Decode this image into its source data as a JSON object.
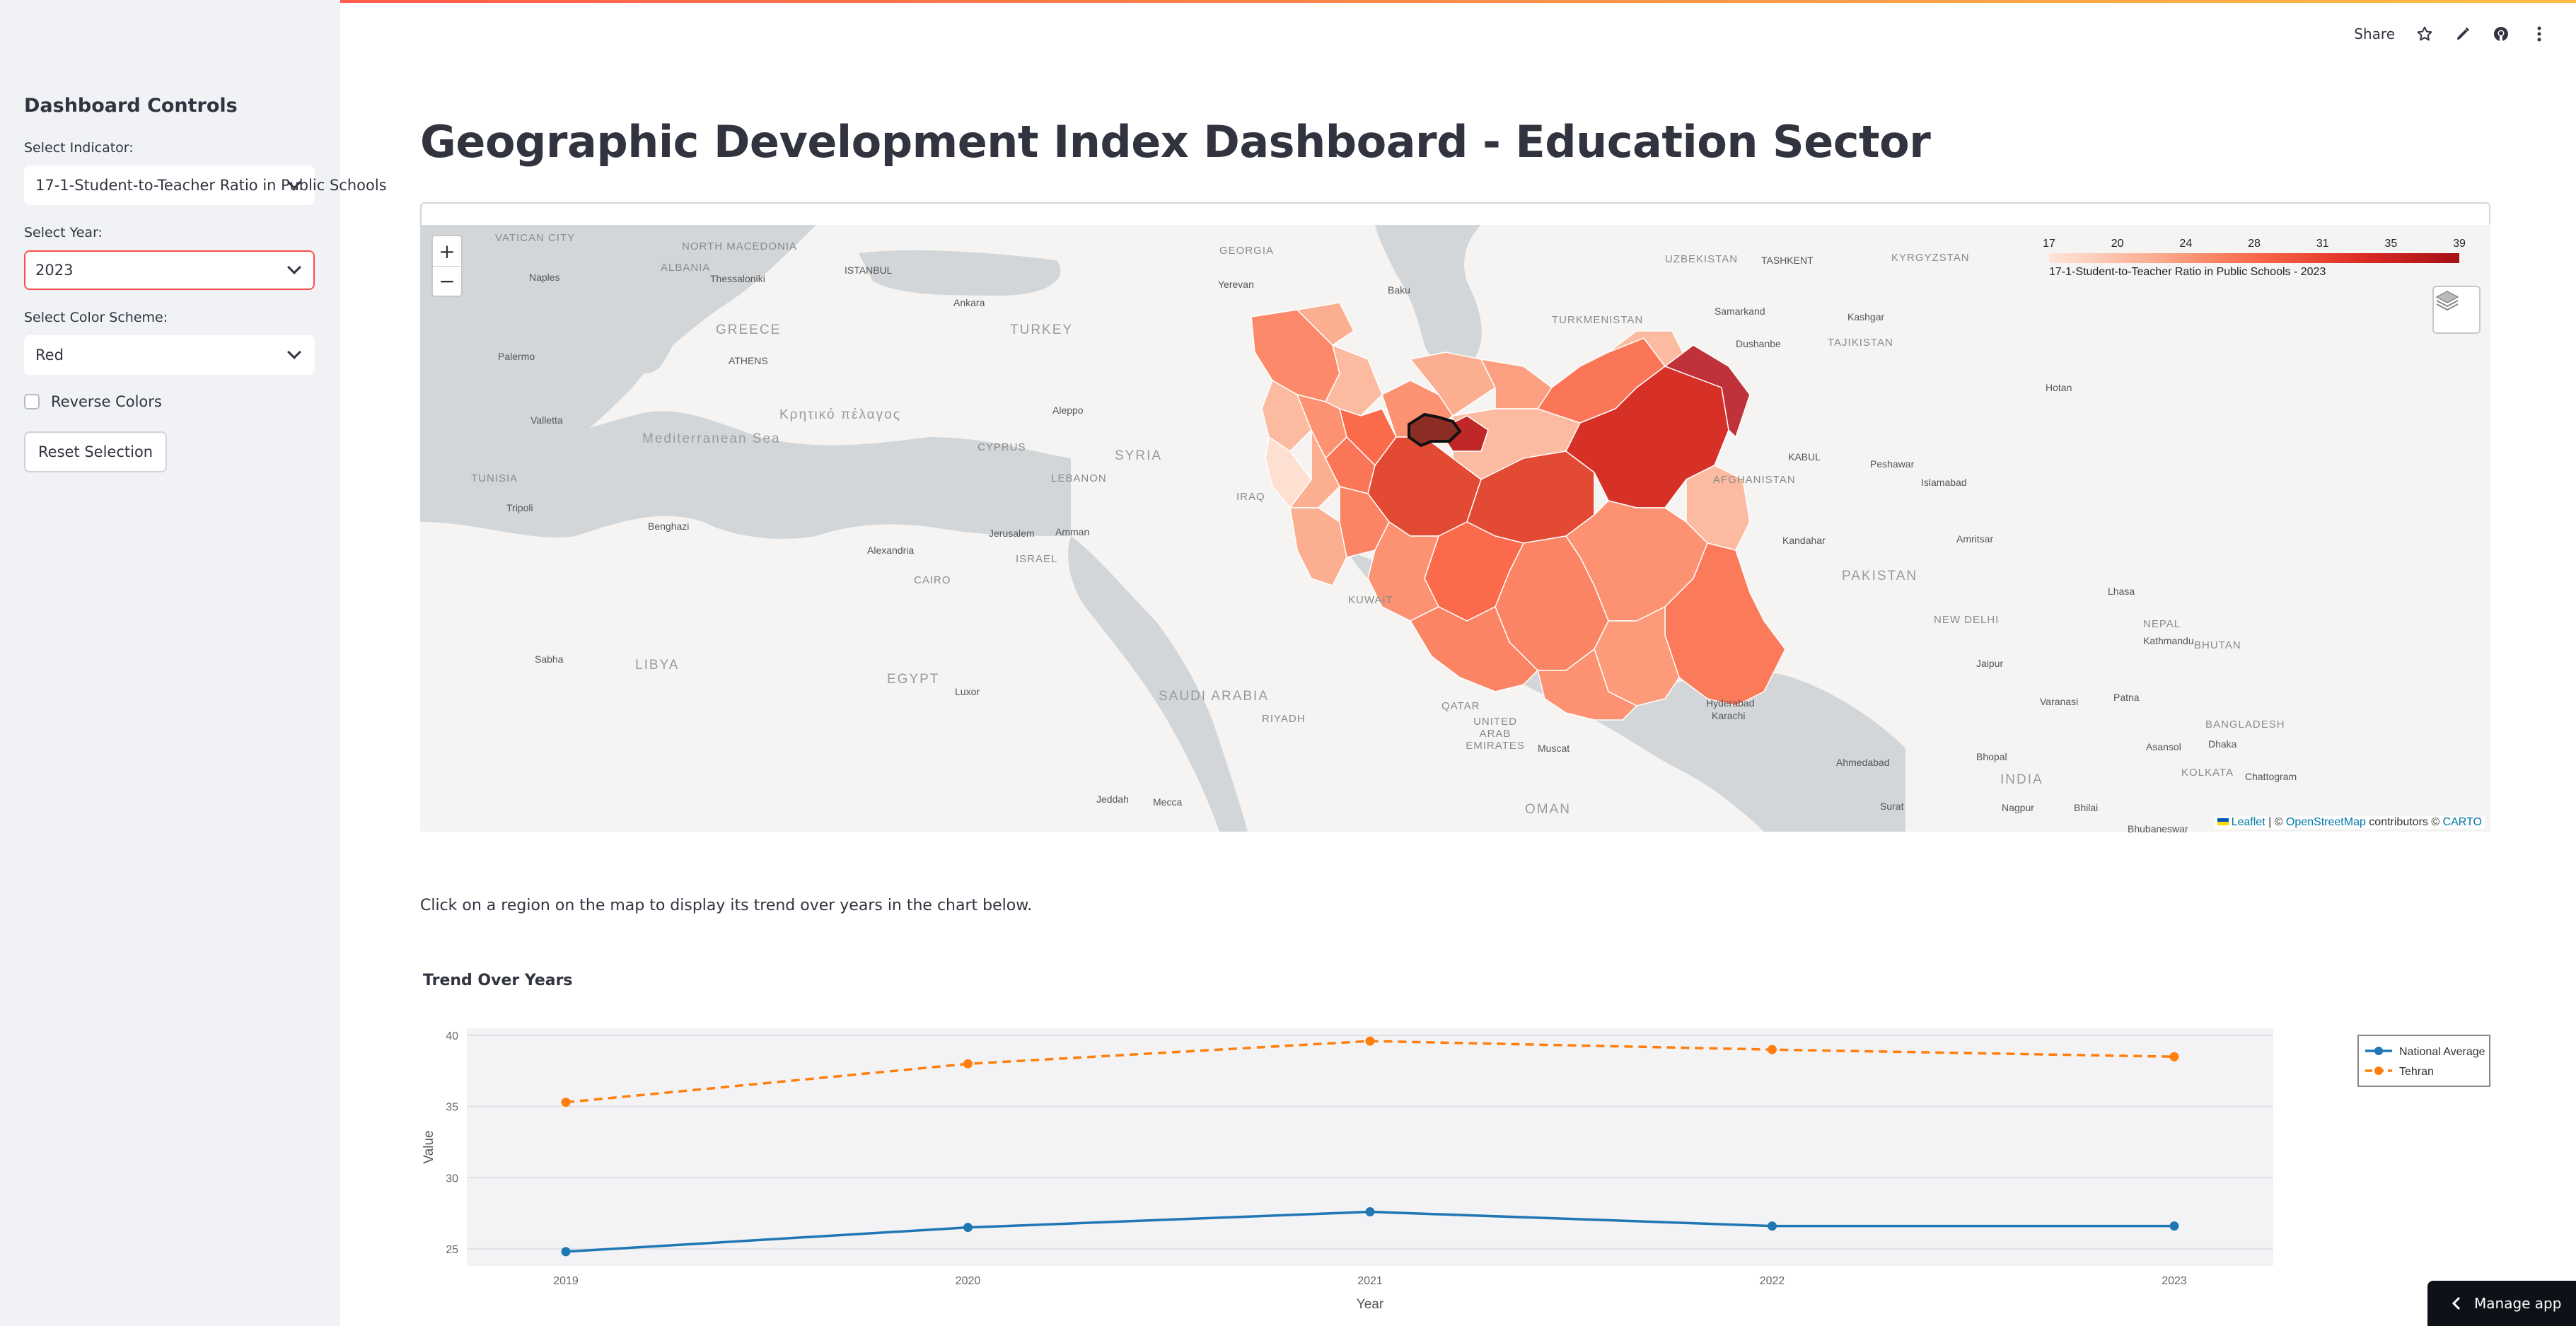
{
  "header": {
    "share_label": "Share",
    "icons": [
      "star-icon",
      "edit-icon",
      "github-icon",
      "more-icon"
    ]
  },
  "sidebar": {
    "title": "Dashboard Controls",
    "indicator_label": "Select Indicator:",
    "indicator_value": "17-1-Student-to-Teacher Ratio in Public Schools",
    "year_label": "Select Year:",
    "year_value": "2023",
    "color_label": "Select Color Scheme:",
    "color_value": "Red",
    "reverse_label": "Reverse Colors",
    "reverse_checked": false,
    "reset_label": "Reset Selection"
  },
  "main": {
    "title": "Geographic Development Index Dashboard - Education Sector",
    "instruction": "Click on a region on the map to display its trend over years in the chart below.",
    "chart_title": "Trend Over Years"
  },
  "map": {
    "zoom_in": "+",
    "zoom_out": "−",
    "legend_ticks": [
      "17",
      "20",
      "24",
      "28",
      "31",
      "35",
      "39"
    ],
    "legend_title": "17-1-Student-to-Teacher Ratio in Public Schools - 2023",
    "attribution_leaflet": "Leaflet",
    "attribution_sep1": " | © ",
    "attribution_osm": "OpenStreetMap",
    "attribution_mid": " contributors © ",
    "attribution_carto": "CARTO",
    "labels": {
      "vatican": "VATICAN CITY",
      "north_macedonia": "NORTH MACEDONIA",
      "georgia": "GEORGIA",
      "uzbekistan": "UZBEKISTAN",
      "tashkent": "TASHKENT",
      "kyrgyzstan": "KYRGYZSTAN",
      "albania": "ALBANIA",
      "thessaloniki": "Thessaloniki",
      "istanbul": "ISTANBUL",
      "yerevan": "Yerevan",
      "baku": "Baku",
      "naples": "Naples",
      "ankara": "Ankara",
      "greece": "GREECE",
      "turkey": "TURKEY",
      "turkmenistan": "TURKMENISTAN",
      "samarkand": "Samarkand",
      "kashgar": "Kashgar",
      "dushanbe": "Dushanbe",
      "tajikistan": "TAJIKISTAN",
      "athens": "ATHENS",
      "palermo": "Palermo",
      "hotan": "Hotan",
      "valletta": "Valletta",
      "mediterranean": "Mediterranean Sea",
      "kritiko": "Κρητικό πέλαγος",
      "aleppo": "Aleppo",
      "cyprus": "CYPRUS",
      "syria": "SYRIA",
      "lebanon": "LEBANON",
      "tunisia": "TUNISIA",
      "iraq": "IRAQ",
      "kabul": "KABUL",
      "peshawar": "Peshawar",
      "islamabad": "Islamabad",
      "afghanistan": "AFGHANISTAN",
      "tripoli": "Tripoli",
      "benghazi": "Benghazi",
      "alexandria": "Alexandria",
      "jerusalem": "Jerusalem",
      "amman": "Amman",
      "israel": "ISRAEL",
      "kandahar": "Kandahar",
      "amritsar": "Amritsar",
      "cairo": "CAIRO",
      "kuwait": "KUWAIT",
      "pakistan": "PAKISTAN",
      "lhasa": "Lhasa",
      "new_delhi": "NEW DELHI",
      "nepal": "NEPAL",
      "kathmandu": "Kathmandu",
      "sabha": "Sabha",
      "libya": "LIBYA",
      "egypt": "EGYPT",
      "jaipur": "Jaipur",
      "bhutan": "BHUTAN",
      "luxor": "Luxor",
      "saudi": "SAUDI ARABIA",
      "riyadh": "RIYADH",
      "qatar": "QATAR",
      "uae": "UNITED ARAB EMIRATES",
      "hyderabad": "Hyderabad",
      "karachi": "Karachi",
      "varanasi": "Varanasi",
      "patna": "Patna",
      "bangladesh": "BANGLADESH",
      "muscat": "Muscat",
      "ahmedabad": "Ahmedabad",
      "bhopal": "Bhopal",
      "asansol": "Asansol",
      "dhaka": "Dhaka",
      "india": "INDIA",
      "kolkata": "KOLKATA",
      "chattogram": "Chattogram",
      "jeddah": "Jeddah",
      "mecca": "Mecca",
      "oman": "OMAN",
      "surat": "Surat",
      "nagpur": "Nagpur",
      "bhilai": "Bhilai",
      "bhubaneswar": "Bhubaneswar"
    }
  },
  "chart_data": {
    "type": "line",
    "x": [
      2019,
      2020,
      2021,
      2022,
      2023
    ],
    "series": [
      {
        "name": "National Average",
        "values": [
          24.8,
          26.5,
          27.6,
          26.6,
          26.6
        ],
        "color": "#1f77b4",
        "dash": false
      },
      {
        "name": "Tehran",
        "values": [
          35.3,
          38.0,
          39.6,
          39.0,
          38.5
        ],
        "color": "#ff7f0e",
        "dash": true
      }
    ],
    "xlabel": "Year",
    "ylabel": "Value",
    "yticks": [
      25,
      30,
      35,
      40
    ],
    "ylim": [
      23.8,
      40.5
    ],
    "legend": "top-right",
    "grid": true
  },
  "manage": {
    "label": "Manage app"
  }
}
